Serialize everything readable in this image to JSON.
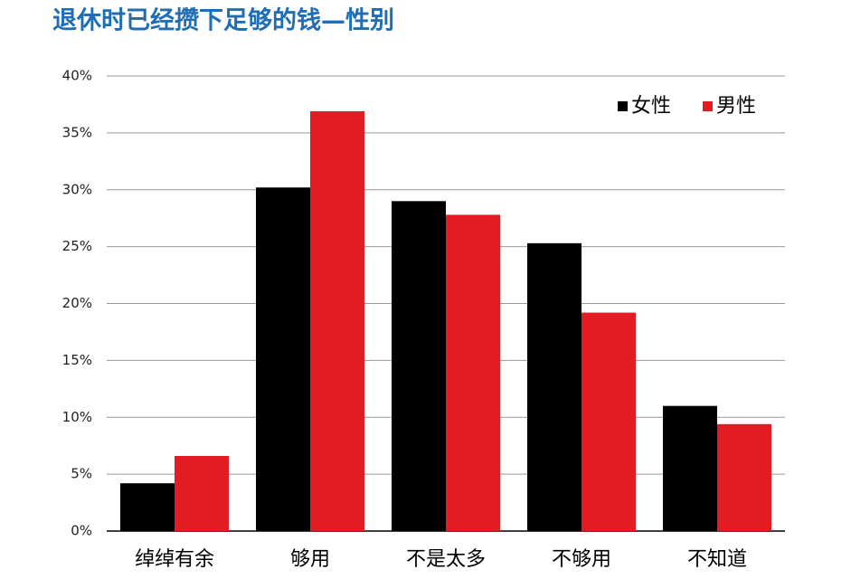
{
  "chart_data": {
    "type": "bar",
    "title": "退休时已经攒下足够的钱—性别",
    "categories": [
      "绰绰有余",
      "够用",
      "不是太多",
      "不够用",
      "不知道"
    ],
    "series": [
      {
        "name": "女性",
        "color": "#000000",
        "values": [
          4.2,
          30.2,
          29.0,
          25.3,
          11.0
        ]
      },
      {
        "name": "男性",
        "color": "#e31b23",
        "values": [
          6.6,
          36.9,
          27.8,
          19.2,
          9.4
        ]
      }
    ],
    "ylim": [
      0,
      40
    ],
    "yticks": [
      {
        "value": 0,
        "label": "0%"
      },
      {
        "value": 5,
        "label": "5%"
      },
      {
        "value": 10,
        "label": "10%"
      },
      {
        "value": 15,
        "label": "15%"
      },
      {
        "value": 20,
        "label": "20%"
      },
      {
        "value": 25,
        "label": "25%"
      },
      {
        "value": 30,
        "label": "30%"
      },
      {
        "value": 35,
        "label": "35%"
      },
      {
        "value": 40,
        "label": "40%"
      }
    ],
    "grid": true,
    "legend": "top-right"
  }
}
